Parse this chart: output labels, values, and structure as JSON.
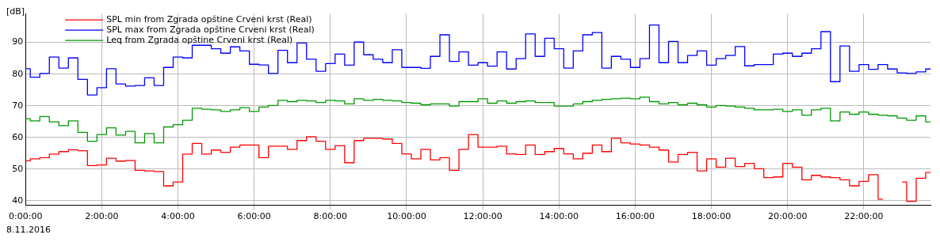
{
  "chart_data": {
    "type": "step",
    "ylabel": "[dB]",
    "xlabel": "8.11.2016",
    "x": [
      0,
      0.25,
      0.5,
      0.75,
      1,
      1.25,
      1.5,
      1.75,
      2,
      2.25,
      2.5,
      2.75,
      3,
      3.25,
      3.5,
      3.75,
      4,
      4.25,
      4.5,
      4.75,
      5,
      5.25,
      5.5,
      5.75,
      6,
      6.25,
      6.5,
      6.75,
      7,
      7.25,
      7.5,
      7.75,
      8,
      8.25,
      8.5,
      8.75,
      9,
      9.25,
      9.5,
      9.75,
      10,
      10.25,
      10.5,
      10.75,
      11,
      11.25,
      11.5,
      11.75,
      12,
      12.25,
      12.5,
      12.75,
      13,
      13.25,
      13.5,
      13.75,
      14,
      14.25,
      14.5,
      14.75,
      15,
      15.25,
      15.5,
      15.75,
      16,
      16.25,
      16.5,
      16.75,
      17,
      17.25,
      17.5,
      17.75,
      18,
      18.25,
      18.5,
      18.75,
      19,
      19.25,
      19.5,
      19.75,
      20,
      20.25,
      20.5,
      20.75,
      21,
      21.25,
      21.5,
      21.75,
      22,
      22.25,
      22.5,
      22.75,
      23,
      23.25,
      23.5,
      23.75
    ],
    "series": [
      {
        "name": "SPL min from Zgrada opštine Crveni krst (Real)",
        "color": "#ff0000",
        "values": [
          52.6,
          53.2,
          53.6,
          54.7,
          55.5,
          56.1,
          55.8,
          51.1,
          51.3,
          53.4,
          52.5,
          52.7,
          49.6,
          49.4,
          49.2,
          44.7,
          45.9,
          54.7,
          58.1,
          54.7,
          56.0,
          55.3,
          56.9,
          57.6,
          57.6,
          53.6,
          57.2,
          57.2,
          56.2,
          59.0,
          60.2,
          58.8,
          56.2,
          57.4,
          52.0,
          59.0,
          59.7,
          59.7,
          59.5,
          58.1,
          54.8,
          53.2,
          56.2,
          52.9,
          53.6,
          49.6,
          56.2,
          60.9,
          56.9,
          56.9,
          57.2,
          54.8,
          54.6,
          57.6,
          54.6,
          55.5,
          56.5,
          54.8,
          53.2,
          55.0,
          57.6,
          55.5,
          59.7,
          58.3,
          57.9,
          57.6,
          56.9,
          56.0,
          52.2,
          54.6,
          55.3,
          49.4,
          53.2,
          50.6,
          53.4,
          50.8,
          51.8,
          50.1,
          47.3,
          47.5,
          51.8,
          50.6,
          46.6,
          48.0,
          47.5,
          47.3,
          46.6,
          44.7,
          46.1,
          48.2,
          40.5,
          null,
          45.9,
          39.8,
          47.1,
          48.9
        ]
      },
      {
        "name": "SPL max from Zgrada opštine Crveni krst (Real)",
        "color": "#0000ff",
        "values": [
          81.7,
          79.0,
          80.2,
          85.4,
          81.9,
          85.1,
          78.3,
          73.4,
          75.7,
          81.7,
          76.9,
          76.2,
          76.4,
          78.8,
          76.4,
          82.1,
          85.4,
          85.1,
          89.1,
          89.1,
          88.0,
          86.6,
          88.6,
          87.3,
          83.1,
          82.9,
          80.2,
          87.5,
          83.6,
          89.8,
          84.7,
          80.9,
          83.3,
          86.3,
          82.8,
          90.1,
          86.1,
          84.7,
          83.6,
          87.7,
          82.1,
          82.1,
          81.8,
          85.6,
          92.4,
          84.0,
          87.0,
          82.8,
          83.6,
          82.5,
          87.0,
          81.6,
          84.9,
          92.7,
          85.6,
          91.3,
          88.0,
          81.9,
          87.3,
          92.4,
          93.1,
          81.9,
          85.6,
          84.7,
          82.1,
          84.9,
          95.5,
          83.6,
          90.3,
          83.6,
          85.9,
          87.3,
          82.8,
          84.9,
          85.9,
          88.7,
          82.6,
          83.0,
          83.0,
          86.3,
          86.6,
          85.6,
          86.6,
          88.0,
          93.4,
          77.6,
          88.9,
          80.9,
          83.0,
          81.5,
          83.0,
          81.6,
          80.4,
          80.2,
          80.7,
          81.6
        ]
      },
      {
        "name": "Leq from Zgrada opštine Crveni krst (Real)",
        "color": "#009900",
        "values": [
          65.9,
          65.2,
          66.6,
          64.9,
          63.7,
          65.2,
          61.6,
          58.8,
          60.9,
          63.0,
          60.7,
          61.9,
          58.3,
          61.2,
          58.3,
          63.3,
          64.0,
          65.4,
          69.2,
          68.9,
          68.7,
          68.2,
          68.7,
          69.4,
          68.2,
          69.6,
          70.1,
          71.7,
          71.3,
          71.7,
          71.5,
          71.0,
          71.7,
          71.5,
          70.6,
          72.2,
          71.7,
          72.0,
          71.7,
          71.5,
          71.0,
          70.8,
          70.3,
          70.6,
          70.6,
          69.9,
          71.3,
          71.3,
          72.2,
          70.8,
          71.5,
          70.8,
          71.3,
          71.5,
          71.0,
          71.0,
          69.9,
          69.9,
          70.6,
          71.3,
          71.7,
          72.0,
          72.2,
          72.4,
          72.2,
          72.7,
          71.3,
          70.6,
          71.0,
          70.3,
          70.8,
          70.3,
          69.6,
          70.1,
          69.9,
          69.6,
          69.2,
          68.7,
          68.7,
          68.9,
          68.2,
          68.7,
          67.0,
          68.7,
          69.2,
          65.2,
          68.0,
          67.3,
          68.0,
          67.3,
          67.0,
          66.8,
          66.1,
          65.4,
          66.8,
          64.9
        ]
      }
    ],
    "xlim": [
      0,
      23.75
    ],
    "xticks": [
      {
        "value": 0,
        "label": "0:00:00"
      },
      {
        "value": 2,
        "label": "2:00:00"
      },
      {
        "value": 4,
        "label": "4:00:00"
      },
      {
        "value": 6,
        "label": "6:00:00"
      },
      {
        "value": 8,
        "label": "8:00:00"
      },
      {
        "value": 10,
        "label": "10:00:00"
      },
      {
        "value": 12,
        "label": "12:00:00"
      },
      {
        "value": 14,
        "label": "14:00:00"
      },
      {
        "value": 16,
        "label": "16:00:00"
      },
      {
        "value": 18,
        "label": "18:00:00"
      },
      {
        "value": 20,
        "label": "20:00:00"
      },
      {
        "value": 22,
        "label": "22:00:00"
      }
    ],
    "ylim": [
      38.5,
      99
    ],
    "yticks": [
      40,
      50,
      60,
      70,
      80,
      90
    ],
    "grid": true,
    "legend": "top left"
  }
}
